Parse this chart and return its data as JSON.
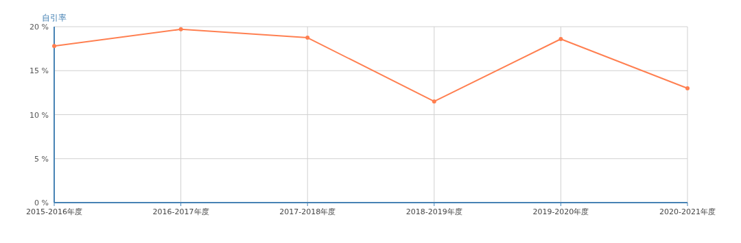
{
  "chart_data": {
    "type": "line",
    "ylabel": "自引率",
    "categories": [
      "2015-2016年度",
      "2016-2017年度",
      "2017-2018年度",
      "2018-2019年度",
      "2019-2020年度",
      "2020-2021年度"
    ],
    "series": [
      {
        "color": "#ff7f50",
        "values": [
          17.8,
          19.7,
          18.75,
          11.5,
          18.6,
          13.0
        ]
      }
    ],
    "ylim": [
      0,
      20
    ],
    "yticks": [
      {
        "value": 0,
        "label": "0 %"
      },
      {
        "value": 5,
        "label": "5 %"
      },
      {
        "value": 10,
        "label": "10 %"
      },
      {
        "value": 15,
        "label": "15 %"
      },
      {
        "value": 20,
        "label": "20 %"
      }
    ],
    "grid": true,
    "marker": "circle",
    "line_style": "solid"
  }
}
